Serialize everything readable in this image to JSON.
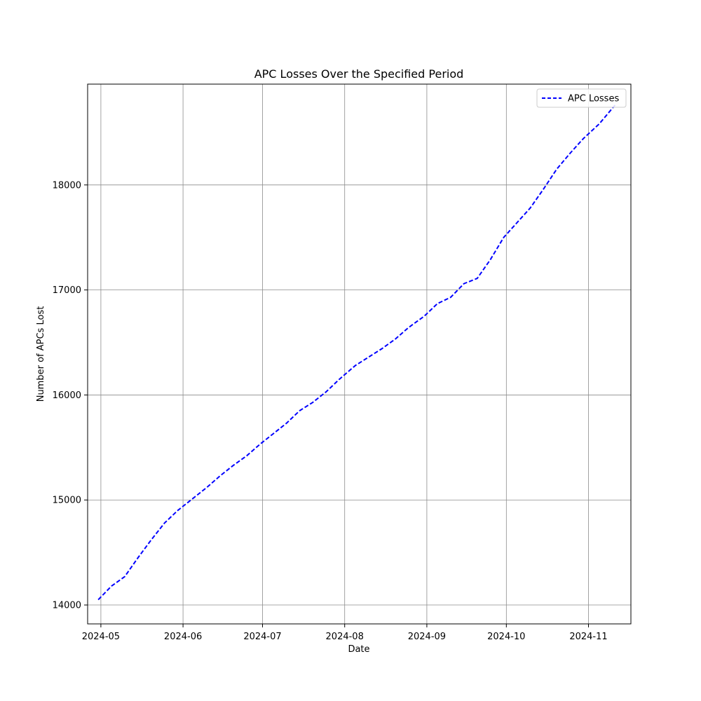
{
  "chart_data": {
    "type": "line",
    "title": "APC Losses Over the Specified Period",
    "xlabel": "Date",
    "ylabel": "Number of APCs Lost",
    "grid": true,
    "legend_position": "top-right",
    "xlim": [
      "2024-04-26",
      "2024-11-17"
    ],
    "ylim": [
      13820,
      18960
    ],
    "x_ticks": [
      "2024-05-01",
      "2024-06-01",
      "2024-07-01",
      "2024-08-01",
      "2024-09-01",
      "2024-10-01",
      "2024-11-01"
    ],
    "x_tick_labels": [
      "2024-05",
      "2024-06",
      "2024-07",
      "2024-08",
      "2024-09",
      "2024-10",
      "2024-11"
    ],
    "y_ticks": [
      14000,
      15000,
      16000,
      17000,
      18000
    ],
    "y_tick_labels": [
      "14000",
      "15000",
      "16000",
      "17000",
      "18000"
    ],
    "series": [
      {
        "name": "APC Losses",
        "color": "#0000ff",
        "line_style": "dashed",
        "points": [
          [
            "2024-04-30",
            14050
          ],
          [
            "2024-05-05",
            14180
          ],
          [
            "2024-05-10",
            14270
          ],
          [
            "2024-05-15",
            14450
          ],
          [
            "2024-05-20",
            14620
          ],
          [
            "2024-05-25",
            14780
          ],
          [
            "2024-05-30",
            14900
          ],
          [
            "2024-06-05",
            15020
          ],
          [
            "2024-06-10",
            15120
          ],
          [
            "2024-06-15",
            15230
          ],
          [
            "2024-06-20",
            15330
          ],
          [
            "2024-06-25",
            15420
          ],
          [
            "2024-06-30",
            15530
          ],
          [
            "2024-07-05",
            15630
          ],
          [
            "2024-07-10",
            15730
          ],
          [
            "2024-07-15",
            15850
          ],
          [
            "2024-07-20",
            15930
          ],
          [
            "2024-07-25",
            16030
          ],
          [
            "2024-07-30",
            16150
          ],
          [
            "2024-08-05",
            16280
          ],
          [
            "2024-08-10",
            16360
          ],
          [
            "2024-08-15",
            16440
          ],
          [
            "2024-08-20",
            16530
          ],
          [
            "2024-08-25",
            16640
          ],
          [
            "2024-08-31",
            16750
          ],
          [
            "2024-09-05",
            16870
          ],
          [
            "2024-09-10",
            16930
          ],
          [
            "2024-09-15",
            17060
          ],
          [
            "2024-09-20",
            17110
          ],
          [
            "2024-09-25",
            17290
          ],
          [
            "2024-09-30",
            17500
          ],
          [
            "2024-10-05",
            17640
          ],
          [
            "2024-10-10",
            17780
          ],
          [
            "2024-10-15",
            17960
          ],
          [
            "2024-10-20",
            18150
          ],
          [
            "2024-10-25",
            18300
          ],
          [
            "2024-10-30",
            18440
          ],
          [
            "2024-11-05",
            18580
          ],
          [
            "2024-11-11",
            18760
          ]
        ]
      }
    ]
  }
}
